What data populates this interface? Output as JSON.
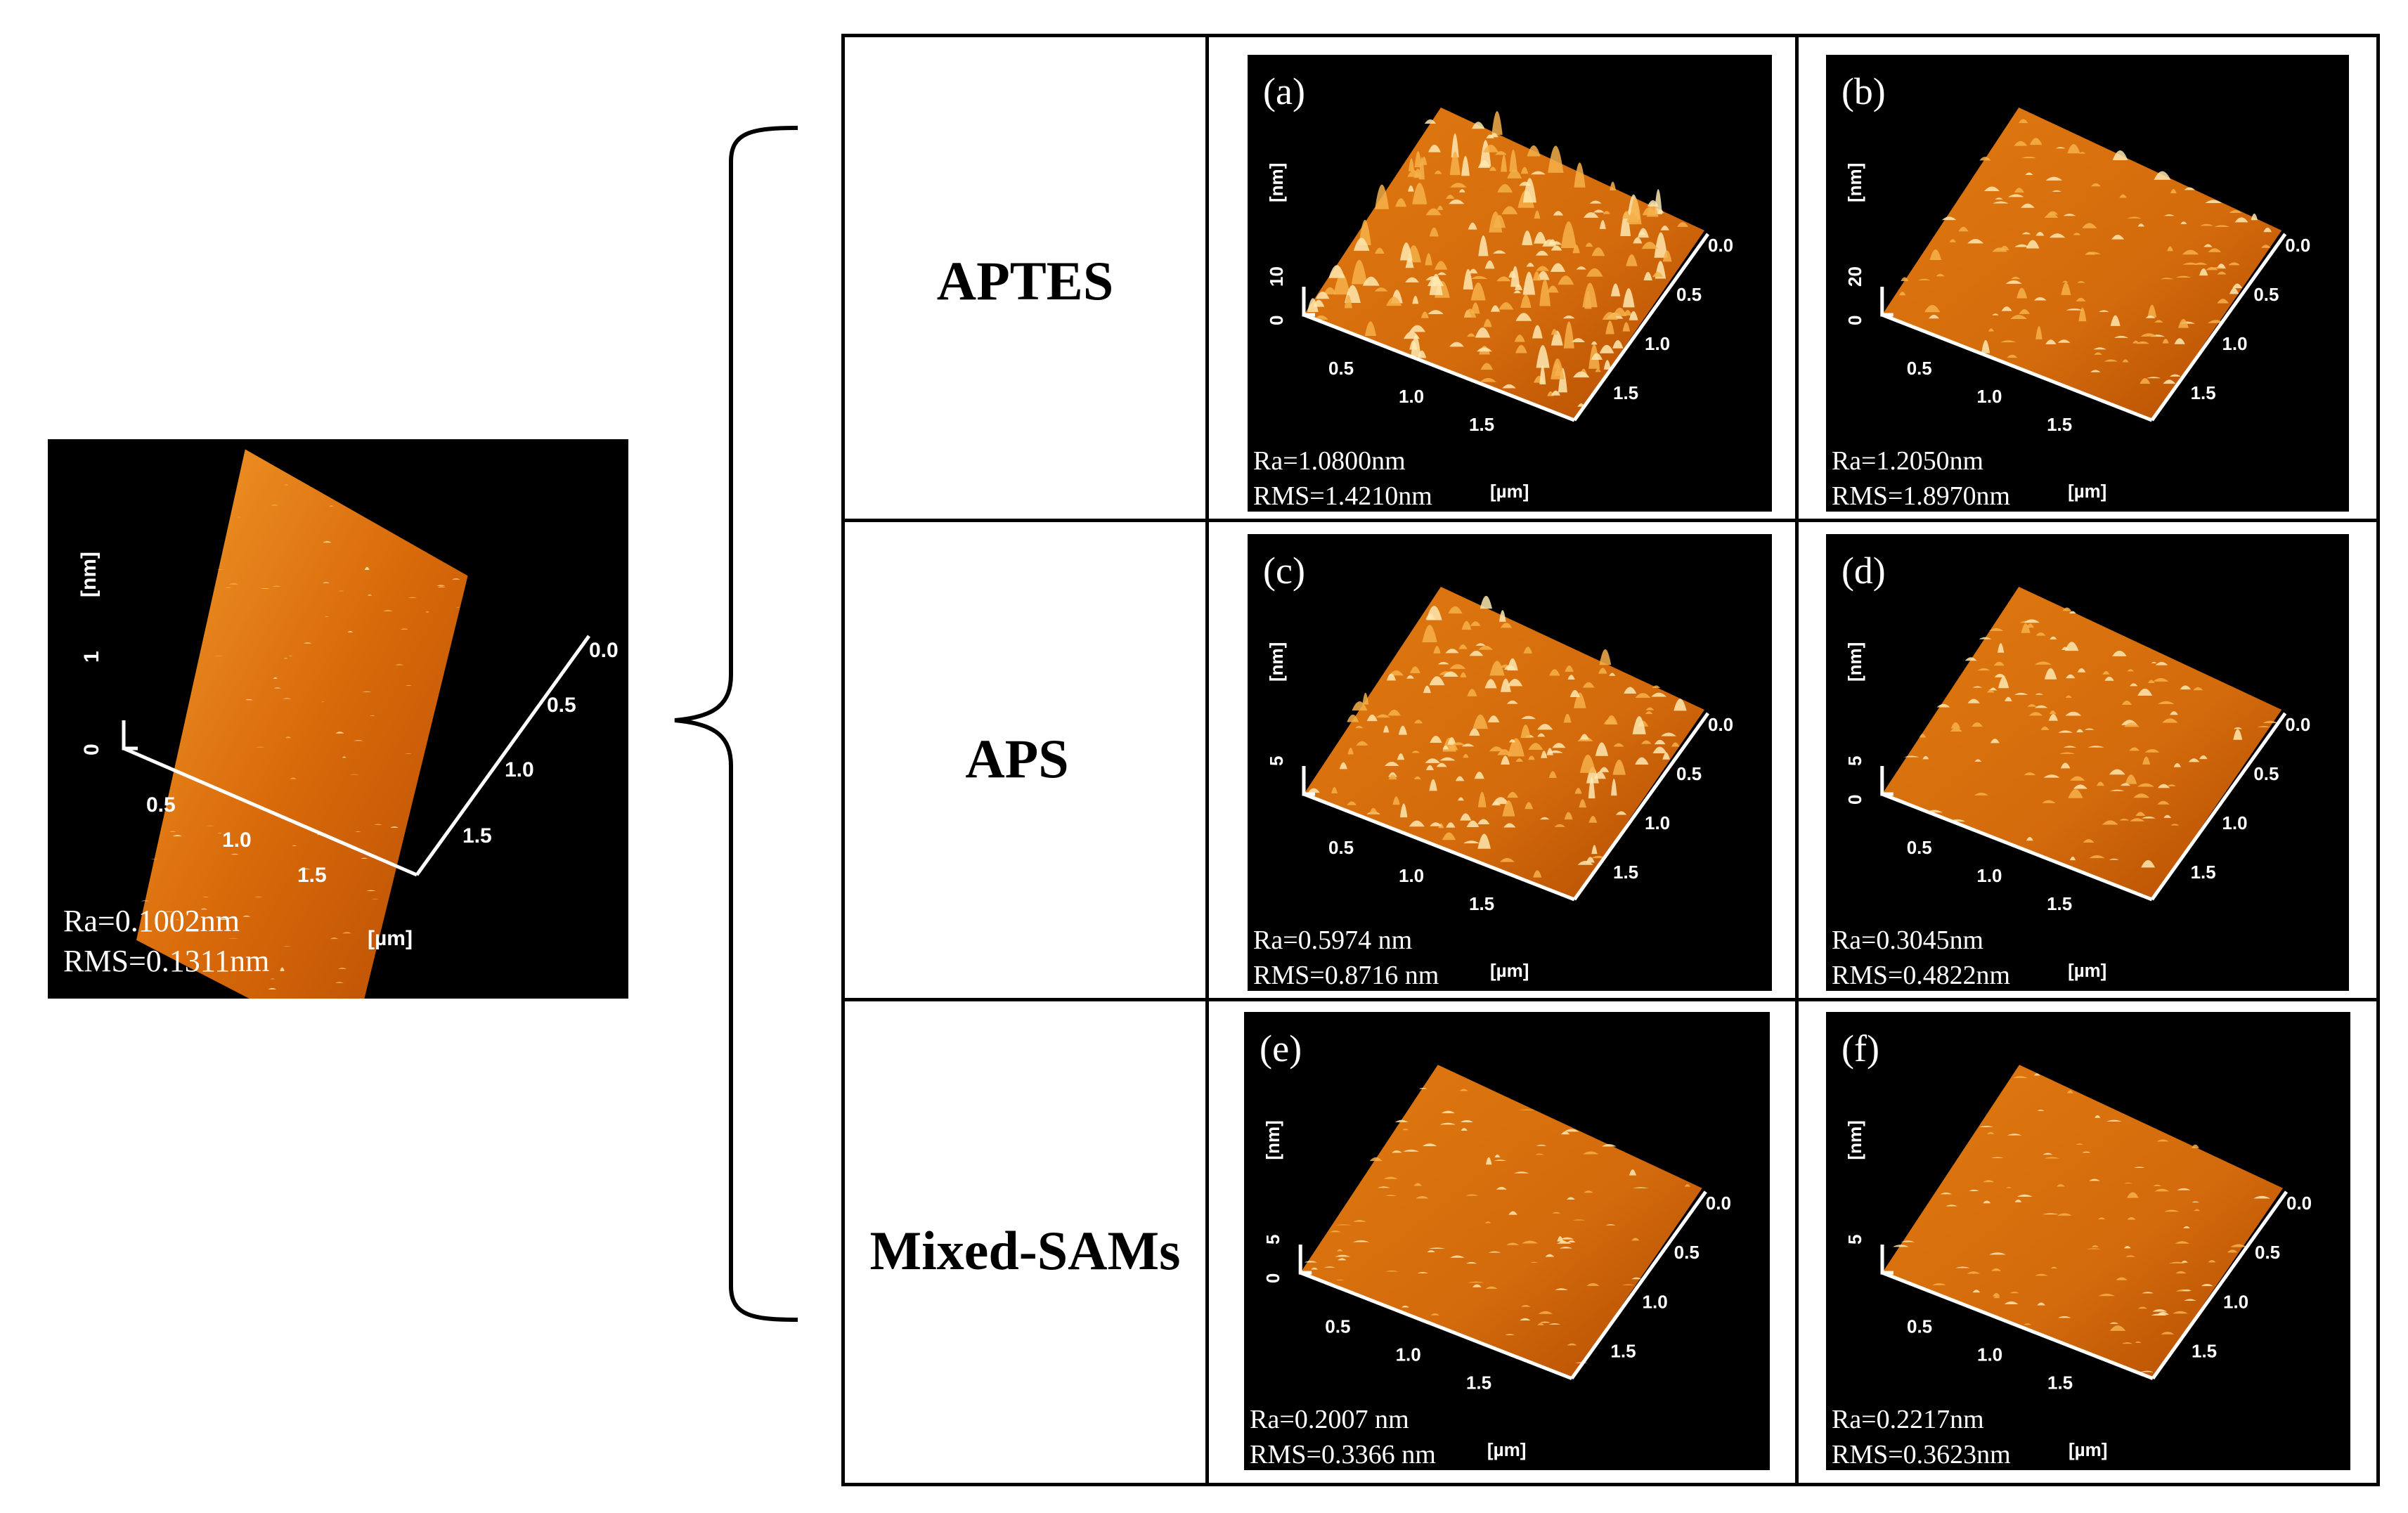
{
  "colors": {
    "surface_dark": "#b14a00",
    "surface_mid": "#e07a10",
    "surface_light": "#f6b04a",
    "peak": "#ffe9b0"
  },
  "units": {
    "z": "[nm]",
    "xy": "[µm]"
  },
  "xy_ticks": [
    "0.5",
    "1.0",
    "1.5"
  ],
  "y_ticks": [
    "0.0",
    "0.5",
    "1.0",
    "1.5"
  ],
  "baseline": {
    "z_ticks": [
      "0",
      "1"
    ],
    "ra": "Ra=0.1002nm",
    "rms": "RMS=0.1311nm",
    "peak_density": 0.1
  },
  "rows": [
    {
      "label": "APTES"
    },
    {
      "label": "APS"
    },
    {
      "label": "Mixed-SAMs"
    }
  ],
  "panels": [
    {
      "letter": "(a)",
      "z_ticks": [
        "0",
        "10"
      ],
      "ra": "Ra=1.0800nm",
      "rms": "RMS=1.4210nm",
      "peak_density": 0.8
    },
    {
      "letter": "(b)",
      "z_ticks": [
        "0",
        "20"
      ],
      "ra": "Ra=1.2050nm",
      "rms": "RMS=1.8970nm",
      "peak_density": 0.35
    },
    {
      "letter": "(c)",
      "z_ticks": [
        "5"
      ],
      "ra": "Ra=0.5974 nm",
      "rms": "RMS=0.8716 nm",
      "peak_density": 0.6
    },
    {
      "letter": "(d)",
      "z_ticks": [
        "0",
        "5"
      ],
      "ra": "Ra=0.3045nm",
      "rms": "RMS=0.4822nm",
      "peak_density": 0.3
    },
    {
      "letter": "(e)",
      "z_ticks": [
        "0",
        "5"
      ],
      "ra": "Ra=0.2007 nm",
      "rms": "RMS=0.3366 nm",
      "peak_density": 0.15
    },
    {
      "letter": "(f)",
      "z_ticks": [
        "5"
      ],
      "ra": "Ra=0.2217nm",
      "rms": "RMS=0.3623nm",
      "peak_density": 0.15
    }
  ]
}
